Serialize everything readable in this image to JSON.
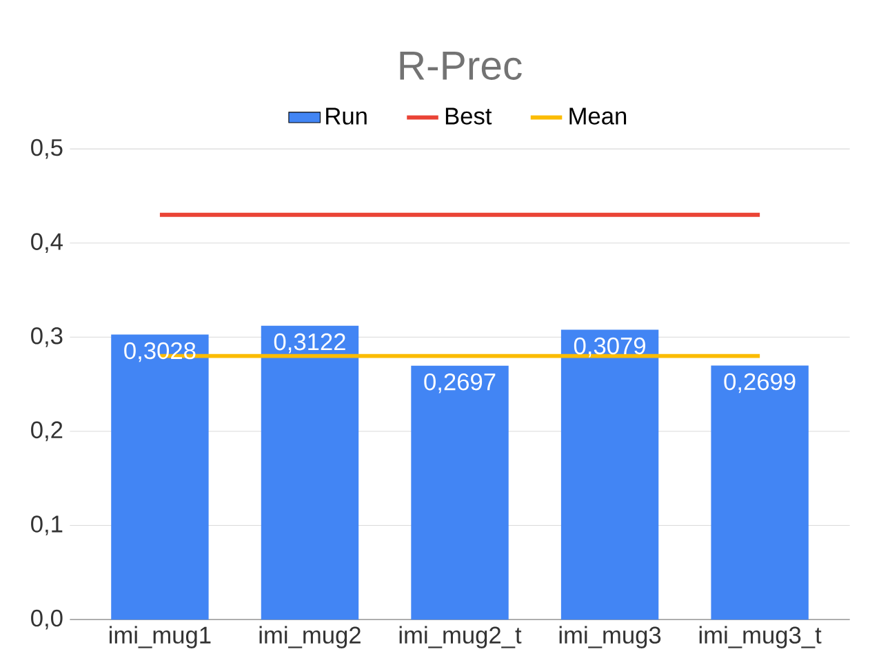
{
  "chart_data": {
    "type": "bar",
    "title": "R-Prec",
    "categories": [
      "imi_mug1",
      "imi_mug2",
      "imi_mug2_t",
      "imi_mug3",
      "imi_mug3_t"
    ],
    "series": [
      {
        "name": "Run",
        "color": "#4285f4",
        "values": [
          0.3028,
          0.3122,
          0.2697,
          0.3079,
          0.2699
        ],
        "value_labels": [
          "0,3028",
          "0,3122",
          "0,2697",
          "0,3079",
          "0,2699"
        ]
      },
      {
        "name": "Best",
        "type": "line",
        "color": "#ea4335",
        "values": [
          0.43,
          0.43,
          0.43,
          0.43,
          0.43
        ]
      },
      {
        "name": "Mean",
        "type": "line",
        "color": "#fbbc04",
        "values": [
          0.28,
          0.28,
          0.28,
          0.28,
          0.28
        ]
      }
    ],
    "ylim": [
      0,
      0.5
    ],
    "yticks": [
      {
        "value": 0,
        "label": "0,0"
      },
      {
        "value": 0.1,
        "label": "0,1"
      },
      {
        "value": 0.2,
        "label": "0,2"
      },
      {
        "value": 0.3,
        "label": "0,3"
      },
      {
        "value": 0.4,
        "label": "0,4"
      },
      {
        "value": 0.5,
        "label": "0,5"
      }
    ],
    "grid": "y",
    "legend": "top",
    "marker": "none"
  }
}
